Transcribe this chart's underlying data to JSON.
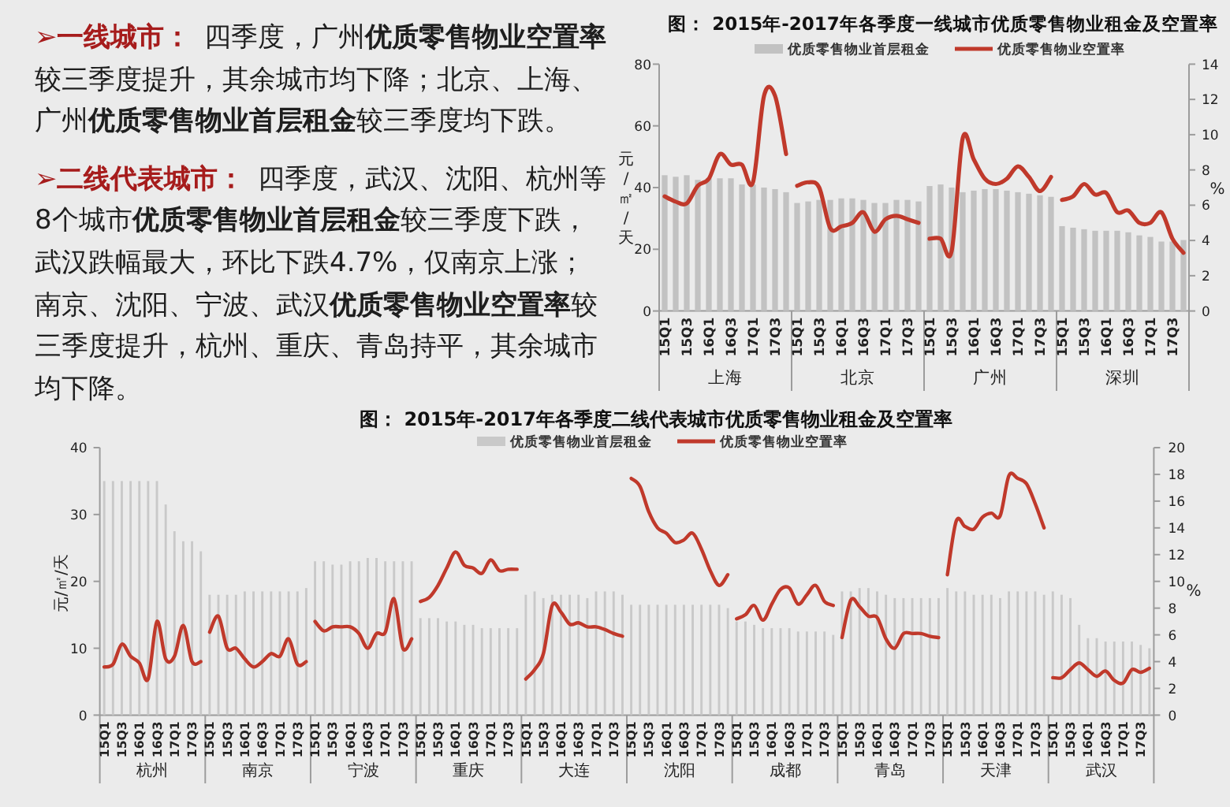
{
  "chart_data": [
    {
      "type": "other",
      "annotations": [
        "**➢一线城市：**四季度，广州**优质零售物业空置率**较三季度提升，其余城市均下降；北京、上海、广州**优质零售物业首层租金**较三季度均下跌。",
        "**➢二线代表城市：**四季度，武汉、沈阳、杭州等8个城市**优质零售物业首层租金**较三季度下跌，武汉跌幅最大，环比下跌4.7%，仅南京上涨；南京、沈阳、宁波、武汉**优质零售物业空置率**较三季度提升，杭州、重庆、青岛持平，其余城市均下降。"
      ]
    },
    {
      "type": "other",
      "title": "图： 2015年-2017年各季度一线城市优质零售物业租金及空置率"
    },
    {
      "type": "bar",
      "legend": "top",
      "xlabel": "上海",
      "ylabel": "元/㎡/天",
      "categories": [
        "15Q1",
        null,
        "15Q3",
        null,
        "16Q1",
        null,
        "16Q3",
        null,
        "17Q1",
        null,
        "17Q3",
        null
      ],
      "ylim": [
        0,
        80
      ],
      "yticks": [
        0,
        20,
        40,
        60,
        80
      ],
      "y2lim": [
        0,
        14
      ],
      "series": [
        {
          "name": "优质零售物业首层租金",
          "color": "#c2c2c2",
          "values": [
            44,
            43.5,
            44,
            42.5,
            43,
            43,
            43,
            41,
            41,
            40,
            39.5,
            38.5
          ]
        },
        {
          "name": "优质零售物业空置率",
          "type": "line",
          "axis": "y2",
          "color": "#c0392b",
          "values": [
            6.5,
            6.2,
            6.1,
            7.1,
            7.5,
            8.9,
            8.3,
            8.3,
            7.3,
            12.2,
            12.2,
            8.9
          ]
        }
      ]
    },
    {
      "type": "bar",
      "xlabel": "北京",
      "tick_labels": "x",
      "categories": [
        "15Q1",
        null,
        "15Q3",
        null,
        "16Q1",
        null,
        "16Q3",
        null,
        "17Q1",
        null,
        "17Q3",
        null
      ],
      "ylim": [
        0,
        80
      ],
      "y2lim": [
        0,
        14
      ],
      "series": [
        {
          "color": "#c2c2c2",
          "values": [
            35,
            35.5,
            36,
            36,
            36.5,
            36.5,
            36,
            35,
            35,
            36,
            36,
            35.5
          ]
        },
        {
          "type": "line",
          "axis": "y2",
          "color": "#c0392b",
          "values": [
            7.1,
            7.3,
            7.0,
            4.7,
            4.8,
            5.0,
            5.6,
            4.5,
            5.2,
            5.4,
            5.2,
            5.0
          ]
        }
      ]
    },
    {
      "type": "bar",
      "xlabel": "广州",
      "tick_labels": "x",
      "categories": [
        "15Q1",
        null,
        "15Q3",
        null,
        "16Q1",
        null,
        "16Q3",
        null,
        "17Q1",
        null,
        "17Q3",
        null
      ],
      "ylim": [
        0,
        80
      ],
      "y2lim": [
        0,
        14
      ],
      "series": [
        {
          "color": "#c2c2c2",
          "values": [
            40.5,
            41,
            40,
            38.5,
            39,
            39.5,
            39.5,
            39,
            38.5,
            38,
            37.5,
            37
          ]
        },
        {
          "type": "line",
          "axis": "y2",
          "color": "#c0392b",
          "values": [
            4.1,
            4.1,
            3.4,
            9.8,
            8.6,
            7.5,
            7.2,
            7.5,
            8.2,
            7.6,
            6.8,
            7.6
          ]
        }
      ]
    },
    {
      "type": "bar",
      "xlabel": "深圳",
      "y2label": "%",
      "categories": [
        "15Q1",
        null,
        "15Q3",
        null,
        "16Q1",
        null,
        "16Q3",
        null,
        "17Q1",
        null,
        "17Q3",
        null
      ],
      "ylim": [
        0,
        80
      ],
      "y2lim": [
        0,
        14
      ],
      "y2ticks": [
        0,
        2,
        4,
        6,
        8,
        10,
        12,
        14
      ],
      "series": [
        {
          "color": "#c2c2c2",
          "values": [
            27.5,
            27,
            26.5,
            26,
            26,
            26,
            25.5,
            24.5,
            24,
            22.5,
            22.5,
            23
          ]
        },
        {
          "type": "line",
          "axis": "y2",
          "color": "#c0392b",
          "values": [
            6.3,
            6.5,
            7.2,
            6.6,
            6.7,
            5.6,
            5.7,
            5.0,
            5.0,
            5.6,
            4.1,
            3.3
          ]
        }
      ]
    },
    {
      "type": "other",
      "title": "图： 2015年-2017年各季度二线代表城市优质零售物业租金及空置率"
    },
    {
      "type": "bar",
      "legend": "top",
      "xlabel": "杭州",
      "ylabel": "元/㎡/天",
      "categories": [
        "15Q1",
        null,
        "15Q3",
        null,
        "16Q1",
        null,
        "16Q3",
        null,
        "17Q1",
        null,
        "17Q3",
        null
      ],
      "ylim": [
        0,
        40
      ],
      "yticks": [
        0,
        10,
        20,
        30,
        40
      ],
      "y2lim": [
        0,
        20
      ],
      "series": [
        {
          "name": "优质零售物业首层租金",
          "color": "#c9c9c9",
          "values": [
            35,
            35,
            35,
            35,
            35,
            35,
            35,
            31.5,
            27.5,
            26,
            26,
            24.5
          ]
        },
        {
          "name": "优质零售物业空置率",
          "type": "line",
          "axis": "y2",
          "color": "#c0392b",
          "values": [
            3.6,
            3.8,
            5.3,
            4.4,
            3.9,
            2.7,
            7.0,
            4.2,
            4.4,
            6.7,
            4.0,
            4.0
          ]
        }
      ]
    },
    {
      "type": "bar",
      "xlabel": "南京",
      "tick_labels": "x",
      "categories": [
        "15Q1",
        null,
        "15Q3",
        null,
        "16Q1",
        null,
        "16Q3",
        null,
        "17Q1",
        null,
        "17Q3",
        null
      ],
      "ylim": [
        0,
        40
      ],
      "y2lim": [
        0,
        20
      ],
      "series": [
        {
          "color": "#c9c9c9",
          "values": [
            18,
            18,
            18,
            18,
            18.5,
            18.5,
            18.5,
            18.5,
            18.5,
            18.5,
            18.5,
            19
          ]
        },
        {
          "type": "line",
          "axis": "y2",
          "color": "#c0392b",
          "values": [
            6.2,
            7.4,
            5.0,
            5.0,
            4.2,
            3.6,
            4.0,
            4.6,
            4.4,
            5.7,
            3.8,
            4.0
          ]
        }
      ]
    },
    {
      "type": "bar",
      "xlabel": "宁波",
      "tick_labels": "x",
      "categories": [
        "15Q1",
        null,
        "15Q3",
        null,
        "16Q1",
        null,
        "16Q3",
        null,
        "17Q1",
        null,
        "17Q3",
        null
      ],
      "ylim": [
        0,
        40
      ],
      "y2lim": [
        0,
        20
      ],
      "series": [
        {
          "color": "#c9c9c9",
          "values": [
            23,
            23,
            22.5,
            22.5,
            23,
            23,
            23.5,
            23.5,
            23,
            23,
            23,
            23
          ]
        },
        {
          "type": "line",
          "axis": "y2",
          "color": "#c0392b",
          "values": [
            7.0,
            6.3,
            6.6,
            6.6,
            6.6,
            6.1,
            5.0,
            6.1,
            6.2,
            8.7,
            5.0,
            5.7
          ]
        }
      ]
    },
    {
      "type": "bar",
      "xlabel": "重庆",
      "tick_labels": "x",
      "categories": [
        "15Q1",
        null,
        "15Q3",
        null,
        "16Q1",
        null,
        "16Q3",
        null,
        "17Q1",
        null,
        "17Q3",
        null
      ],
      "ylim": [
        0,
        40
      ],
      "y2lim": [
        0,
        20
      ],
      "series": [
        {
          "color": "#c9c9c9",
          "values": [
            14.5,
            14.5,
            14.5,
            14,
            14,
            13.5,
            13.5,
            13,
            13,
            13,
            13,
            13
          ]
        },
        {
          "type": "line",
          "axis": "y2",
          "color": "#c0392b",
          "values": [
            8.5,
            8.8,
            9.7,
            11.0,
            12.2,
            11.2,
            11.0,
            10.6,
            11.6,
            10.8,
            10.9,
            10.9
          ]
        }
      ]
    },
    {
      "type": "bar",
      "xlabel": "大连",
      "tick_labels": "x",
      "categories": [
        "15Q1",
        null,
        "15Q3",
        null,
        "16Q1",
        null,
        "16Q3",
        null,
        "17Q1",
        null,
        "17Q3",
        null
      ],
      "ylim": [
        0,
        40
      ],
      "y2lim": [
        0,
        20
      ],
      "series": [
        {
          "color": "#c9c9c9",
          "values": [
            18,
            18.5,
            17.5,
            18,
            18,
            18,
            18,
            17.5,
            18.5,
            18.5,
            18.5,
            18
          ]
        },
        {
          "type": "line",
          "axis": "y2",
          "color": "#c0392b",
          "values": [
            2.7,
            3.4,
            4.6,
            8.2,
            7.7,
            6.8,
            6.9,
            6.6,
            6.6,
            6.4,
            6.1,
            5.9
          ]
        }
      ]
    },
    {
      "type": "bar",
      "xlabel": "沈阳",
      "tick_labels": "x",
      "categories": [
        "15Q1",
        null,
        "15Q3",
        null,
        "16Q1",
        null,
        "16Q3",
        null,
        "17Q1",
        null,
        "17Q3",
        null
      ],
      "ylim": [
        0,
        40
      ],
      "y2lim": [
        0,
        20
      ],
      "series": [
        {
          "color": "#c9c9c9",
          "values": [
            16.5,
            16.5,
            16.5,
            16.5,
            16.5,
            16.5,
            16.5,
            16.5,
            16.5,
            16.5,
            16.5,
            16
          ]
        },
        {
          "type": "line",
          "axis": "y2",
          "color": "#c0392b",
          "values": [
            17.7,
            17.1,
            15.2,
            14.0,
            13.6,
            12.9,
            13.1,
            13.6,
            12.4,
            10.8,
            9.7,
            10.5
          ]
        }
      ]
    },
    {
      "type": "bar",
      "xlabel": "成都",
      "tick_labels": "x",
      "categories": [
        "15Q1",
        null,
        "15Q3",
        null,
        "16Q1",
        null,
        "16Q3",
        null,
        "17Q1",
        null,
        "17Q3",
        null
      ],
      "ylim": [
        0,
        40
      ],
      "y2lim": [
        0,
        20
      ],
      "series": [
        {
          "color": "#c9c9c9",
          "values": [
            14,
            14,
            13.5,
            13,
            13,
            13,
            13,
            12.5,
            12.5,
            12.5,
            12.5,
            12
          ]
        },
        {
          "type": "line",
          "axis": "y2",
          "color": "#c0392b",
          "values": [
            7.2,
            7.5,
            8.2,
            7.1,
            8.3,
            9.4,
            9.5,
            8.3,
            9.0,
            9.7,
            8.5,
            8.2
          ]
        }
      ]
    },
    {
      "type": "bar",
      "xlabel": "青岛",
      "tick_labels": "x",
      "categories": [
        "15Q1",
        null,
        "15Q3",
        null,
        "16Q1",
        null,
        "16Q3",
        null,
        "17Q1",
        null,
        "17Q3",
        null
      ],
      "ylim": [
        0,
        40
      ],
      "y2lim": [
        0,
        20
      ],
      "series": [
        {
          "color": "#c9c9c9",
          "values": [
            18.5,
            18.5,
            19,
            19,
            18.5,
            18,
            17.5,
            17.5,
            17.5,
            17.5,
            17.5,
            17.5
          ]
        },
        {
          "type": "line",
          "axis": "y2",
          "color": "#c0392b",
          "values": [
            5.8,
            8.6,
            8.1,
            7.4,
            7.3,
            5.7,
            5.0,
            6.1,
            6.1,
            6.1,
            5.9,
            5.8
          ]
        }
      ]
    },
    {
      "type": "bar",
      "xlabel": "天津",
      "tick_labels": "x",
      "categories": [
        "15Q1",
        null,
        "15Q3",
        null,
        "16Q1",
        null,
        "16Q3",
        null,
        "17Q1",
        null,
        "17Q3",
        null
      ],
      "ylim": [
        0,
        40
      ],
      "y2lim": [
        0,
        20
      ],
      "series": [
        {
          "color": "#c9c9c9",
          "values": [
            19,
            18.5,
            18.5,
            18,
            18,
            18,
            17.5,
            18.5,
            18.5,
            18.5,
            18.5,
            18
          ]
        },
        {
          "type": "line",
          "axis": "y2",
          "color": "#c0392b",
          "values": [
            10.5,
            14.5,
            14.1,
            13.9,
            14.8,
            15.1,
            14.9,
            17.9,
            17.7,
            17.3,
            15.8,
            14.0
          ]
        }
      ]
    },
    {
      "type": "bar",
      "xlabel": "武汉",
      "y2label": "%",
      "categories": [
        "15Q1",
        null,
        "15Q3",
        null,
        "16Q1",
        null,
        "16Q3",
        null,
        "17Q1",
        null,
        "17Q3",
        null
      ],
      "ylim": [
        0,
        40
      ],
      "y2lim": [
        0,
        20
      ],
      "y2ticks": [
        0,
        2,
        4,
        6,
        8,
        10,
        12,
        14,
        16,
        18,
        20
      ],
      "series": [
        {
          "color": "#c9c9c9",
          "values": [
            18.5,
            18,
            17.5,
            13.5,
            11.5,
            11.5,
            11,
            11,
            11,
            11,
            10.5,
            10
          ]
        },
        {
          "type": "line",
          "axis": "y2",
          "color": "#c0392b",
          "values": [
            2.8,
            2.8,
            3.4,
            3.9,
            3.4,
            2.9,
            3.3,
            2.6,
            2.4,
            3.4,
            3.2,
            3.5
          ]
        }
      ]
    }
  ]
}
